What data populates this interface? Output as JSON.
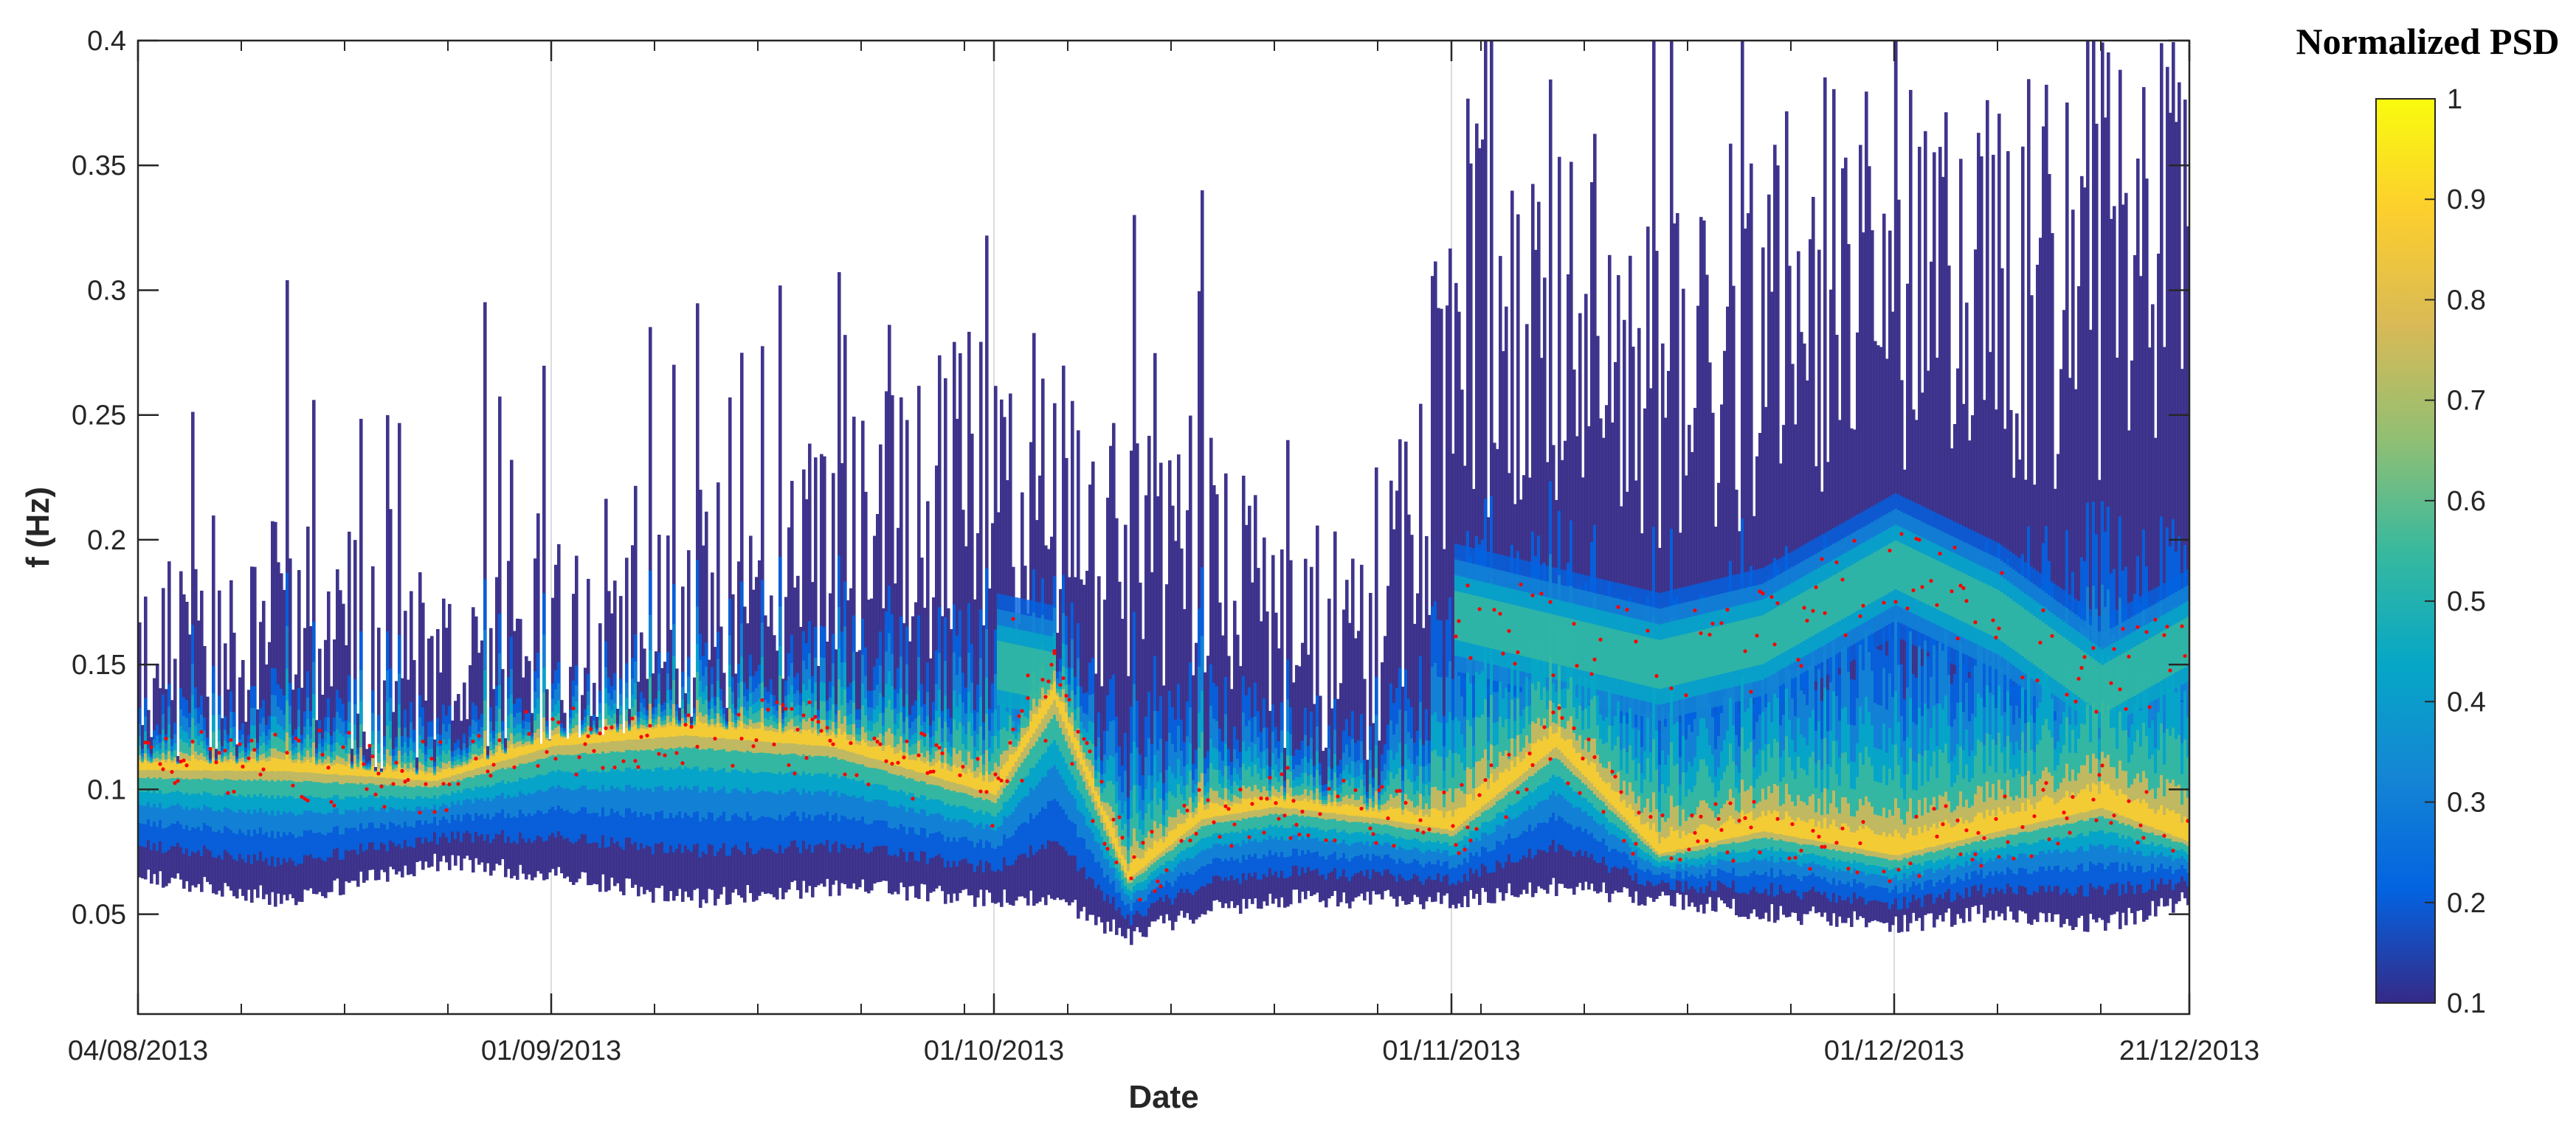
{
  "chart_data": {
    "type": "heatmap",
    "title": "",
    "xlabel": "Date",
    "ylabel": "f (Hz)",
    "x_ticks": [
      "04/08/2013",
      "01/09/2013",
      "01/10/2013",
      "01/11/2013",
      "01/12/2013",
      "21/12/2013"
    ],
    "x_range": [
      "04/08/2013",
      "21/12/2013"
    ],
    "y_ticks": [
      "0.05",
      "0.1",
      "0.15",
      "0.2",
      "0.25",
      "0.3",
      "0.35",
      "0.4"
    ],
    "ylim": [
      0.01,
      0.4
    ],
    "grid": "vertical lines at major date ticks",
    "colorbar": {
      "title": "Normalized PSD",
      "range": [
        0.1,
        1
      ],
      "ticks": [
        "0.1",
        "0.2",
        "0.3",
        "0.4",
        "0.5",
        "0.6",
        "0.7",
        "0.8",
        "0.9",
        "1"
      ],
      "colormap": "parula",
      "colors": [
        "#352a87",
        "#0363e1",
        "#1485d4",
        "#06a7c6",
        "#38b99e",
        "#92bf73",
        "#d9ba56",
        "#fcce2e",
        "#f9fb0e"
      ]
    },
    "peak_marker_color": "#ff0000",
    "spectral_band": {
      "dates": [
        "04/08/2013",
        "14/08/2013",
        "24/08/2013",
        "01/09/2013",
        "10/09/2013",
        "20/09/2013",
        "01/10/2013",
        "05/10/2013",
        "10/10/2013",
        "15/10/2013",
        "20/10/2013",
        "27/10/2013",
        "01/11/2013",
        "08/11/2013",
        "15/11/2013",
        "22/11/2013",
        "01/12/2013",
        "08/12/2013",
        "15/12/2013",
        "21/12/2013"
      ],
      "peak_frequency_hz": [
        0.11,
        0.11,
        0.105,
        0.12,
        0.125,
        0.12,
        0.1,
        0.14,
        0.065,
        0.09,
        0.095,
        0.09,
        0.085,
        0.12,
        0.075,
        0.085,
        0.075,
        0.085,
        0.095,
        0.08
      ],
      "secondary_peak_frequency_hz": [
        null,
        null,
        null,
        null,
        null,
        null,
        0.15,
        0.145,
        null,
        null,
        null,
        null,
        0.17,
        0.16,
        0.15,
        0.16,
        0.19,
        0.17,
        0.14,
        0.16
      ],
      "lower_edge_hz": [
        0.07,
        0.06,
        0.075,
        0.07,
        0.06,
        0.065,
        0.06,
        0.06,
        0.045,
        0.055,
        0.06,
        0.06,
        0.06,
        0.065,
        0.06,
        0.055,
        0.05,
        0.055,
        0.05,
        0.06
      ],
      "upper_edge_hz": [
        0.2,
        0.22,
        0.18,
        0.2,
        0.22,
        0.25,
        0.29,
        0.28,
        0.24,
        0.26,
        0.21,
        0.2,
        0.36,
        0.39,
        0.33,
        0.38,
        0.4,
        0.38,
        0.4,
        0.4
      ]
    }
  }
}
